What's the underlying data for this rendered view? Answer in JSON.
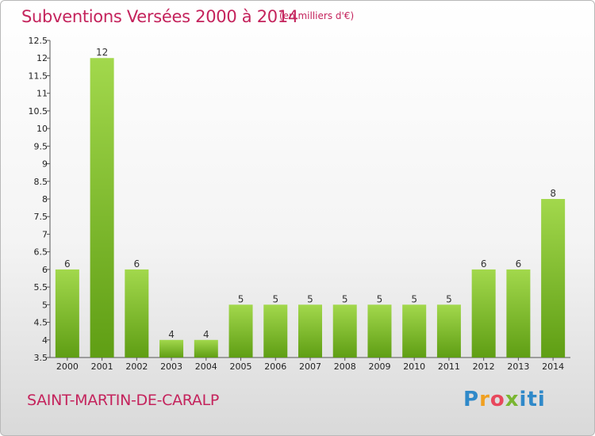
{
  "header": {
    "title": "Subventions Versées 2000 à 2014",
    "unit": "(en milliers d'€)"
  },
  "footer": {
    "commune": "SAINT-MARTIN-DE-CARALP",
    "logo": "Proxiti"
  },
  "colors": {
    "title": "#c4235c",
    "bar_light": "#9dd448",
    "bar_dark": "#5f9e14"
  },
  "chart_data": {
    "type": "bar",
    "title": "Subventions Versées 2000 à 2014",
    "subtitle": "(en milliers d'€)",
    "categories": [
      "2000",
      "2001",
      "2002",
      "2003",
      "2004",
      "2005",
      "2006",
      "2007",
      "2008",
      "2009",
      "2010",
      "2011",
      "2012",
      "2013",
      "2014"
    ],
    "values": [
      6,
      12,
      6,
      4,
      4,
      5,
      5,
      5,
      5,
      5,
      5,
      5,
      6,
      6,
      8
    ],
    "data_labels": [
      "6",
      "12",
      "6",
      "4",
      "4",
      "5",
      "5",
      "5",
      "5",
      "5",
      "5",
      "5",
      "6",
      "6",
      "8"
    ],
    "ylim": [
      3.5,
      12.5
    ],
    "yticks": [
      3.5,
      4,
      4.5,
      5,
      5.5,
      6,
      6.5,
      7,
      7.5,
      8,
      8.5,
      9,
      9.5,
      10,
      10.5,
      11,
      11.5,
      12,
      12.5
    ],
    "ytick_labels": [
      "3.5",
      "4",
      "4.5",
      "5",
      "5.5",
      "6",
      "6.5",
      "7",
      "7.5",
      "8",
      "8.5",
      "9",
      "9.5",
      "10",
      "10.5",
      "11",
      "11.5",
      "12",
      "12.5"
    ],
    "grid": false,
    "legend": "none"
  }
}
